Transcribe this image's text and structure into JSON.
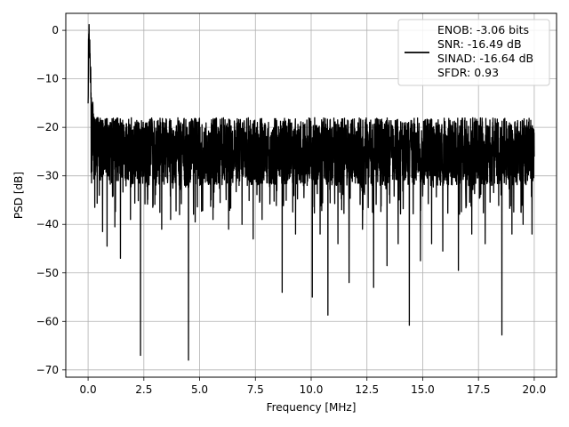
{
  "chart_data": {
    "type": "line",
    "title": "",
    "xlabel": "Frequency [MHz]",
    "ylabel": "PSD [dB]",
    "xlim": [
      -1.0,
      21.0
    ],
    "ylim": [
      -71.5,
      3.5
    ],
    "xticks": [
      0.0,
      2.5,
      5.0,
      7.5,
      10.0,
      12.5,
      15.0,
      17.5,
      20.0
    ],
    "xtick_labels": [
      "0.0",
      "2.5",
      "5.0",
      "7.5",
      "10.0",
      "12.5",
      "15.0",
      "17.5",
      "20.0"
    ],
    "yticks": [
      0,
      -10,
      -20,
      -30,
      -40,
      -50,
      -60,
      -70
    ],
    "ytick_labels": [
      "0",
      "−10",
      "−20",
      "−30",
      "−40",
      "−50",
      "−60",
      "−70"
    ],
    "grid": true,
    "legend_position": "top-right",
    "line_color": "#000000",
    "legend": {
      "lines": [
        "ENOB: -3.06 bits",
        "SNR: -16.49 dB",
        "SINAD: -16.64 dB",
        "SFDR: 0.93"
      ]
    },
    "series": [
      {
        "x_range": [
          0.0,
          20.0
        ],
        "noise_band": {
          "upper": -18,
          "lower": -32
        },
        "x": [
          0.0,
          0.02,
          0.04,
          0.06,
          0.08,
          0.1,
          0.15,
          0.2,
          0.3,
          0.4,
          0.6,
          0.8,
          1.0,
          1.5,
          2.0,
          2.5,
          3.0,
          3.5,
          4.0,
          5.0,
          6.0,
          7.0,
          8.0,
          9.0,
          10.0,
          11.0,
          12.0,
          13.0,
          14.0,
          15.0,
          16.0,
          17.0,
          18.0,
          19.0,
          20.0
        ],
        "y": [
          -16.0,
          -4.0,
          0.0,
          -6.0,
          -3.0,
          -9.0,
          -12.0,
          -14.0,
          -20.0,
          -18.0,
          -22.0,
          -19.0,
          -24.0,
          -21.0,
          -25.0,
          -22.0,
          -26.0,
          -23.0,
          -24.0,
          -25.0,
          -24.0,
          -25.0,
          -26.0,
          -24.0,
          -25.0,
          -24.0,
          -26.0,
          -25.0,
          -24.0,
          -25.0,
          -26.0,
          -24.0,
          -25.0,
          -24.0,
          -25.0
        ],
        "dips": [
          {
            "x": 0.3,
            "y": -36.5
          },
          {
            "x": 0.5,
            "y": -34.0
          },
          {
            "x": 0.65,
            "y": -41.5
          },
          {
            "x": 0.85,
            "y": -44.5
          },
          {
            "x": 1.2,
            "y": -40.5
          },
          {
            "x": 1.45,
            "y": -47.0
          },
          {
            "x": 1.9,
            "y": -39.0
          },
          {
            "x": 2.35,
            "y": -67.0
          },
          {
            "x": 2.9,
            "y": -36.5
          },
          {
            "x": 3.3,
            "y": -41.0
          },
          {
            "x": 3.7,
            "y": -39.0
          },
          {
            "x": 4.1,
            "y": -38.0
          },
          {
            "x": 4.5,
            "y": -68.0
          },
          {
            "x": 4.8,
            "y": -39.5
          },
          {
            "x": 5.6,
            "y": -39.0
          },
          {
            "x": 6.3,
            "y": -41.0
          },
          {
            "x": 6.9,
            "y": -40.0
          },
          {
            "x": 7.4,
            "y": -43.0
          },
          {
            "x": 7.8,
            "y": -39.0
          },
          {
            "x": 8.7,
            "y": -54.0
          },
          {
            "x": 9.3,
            "y": -42.0
          },
          {
            "x": 10.05,
            "y": -55.0
          },
          {
            "x": 10.4,
            "y": -42.0
          },
          {
            "x": 10.75,
            "y": -58.7
          },
          {
            "x": 11.2,
            "y": -44.0
          },
          {
            "x": 11.7,
            "y": -52.0
          },
          {
            "x": 12.3,
            "y": -41.0
          },
          {
            "x": 12.8,
            "y": -53.0
          },
          {
            "x": 13.4,
            "y": -48.5
          },
          {
            "x": 13.9,
            "y": -44.0
          },
          {
            "x": 14.4,
            "y": -60.8
          },
          {
            "x": 14.9,
            "y": -47.5
          },
          {
            "x": 15.4,
            "y": -44.0
          },
          {
            "x": 15.9,
            "y": -45.5
          },
          {
            "x": 16.6,
            "y": -49.5
          },
          {
            "x": 17.2,
            "y": -42.0
          },
          {
            "x": 17.8,
            "y": -44.0
          },
          {
            "x": 18.55,
            "y": -62.8
          },
          {
            "x": 19.0,
            "y": -42.0
          },
          {
            "x": 19.5,
            "y": -40.0
          },
          {
            "x": 19.9,
            "y": -42.0
          }
        ]
      }
    ]
  }
}
